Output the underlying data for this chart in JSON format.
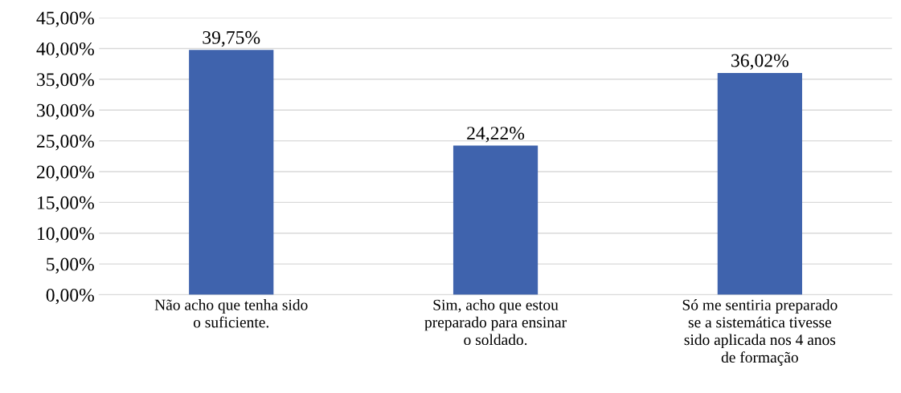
{
  "chart_data": {
    "type": "bar",
    "categories": [
      "Não acho que tenha sido\no suficiente.",
      "Sim, acho que estou\npreparado para ensinar\no soldado.",
      "Só me sentiria preparado\nse a sistemática tivesse\nsido aplicada nos 4 anos\nde formação"
    ],
    "values": [
      39.75,
      24.22,
      36.02
    ],
    "value_labels": [
      "39,75%",
      "24,22%",
      "36,02%"
    ],
    "color": "#3f63ad",
    "ylim": [
      0,
      45
    ],
    "yticks": [
      {
        "value": 0,
        "label": "0,00%"
      },
      {
        "value": 5,
        "label": "5,00%"
      },
      {
        "value": 10,
        "label": "10,00%"
      },
      {
        "value": 15,
        "label": "15,00%"
      },
      {
        "value": 20,
        "label": "20,00%"
      },
      {
        "value": 25,
        "label": "25,00%"
      },
      {
        "value": 30,
        "label": "30,00%"
      },
      {
        "value": 35,
        "label": "35,00%"
      },
      {
        "value": 40,
        "label": "40,00%"
      },
      {
        "value": 45,
        "label": "45,00%"
      }
    ],
    "grid": "y",
    "legend": false
  }
}
